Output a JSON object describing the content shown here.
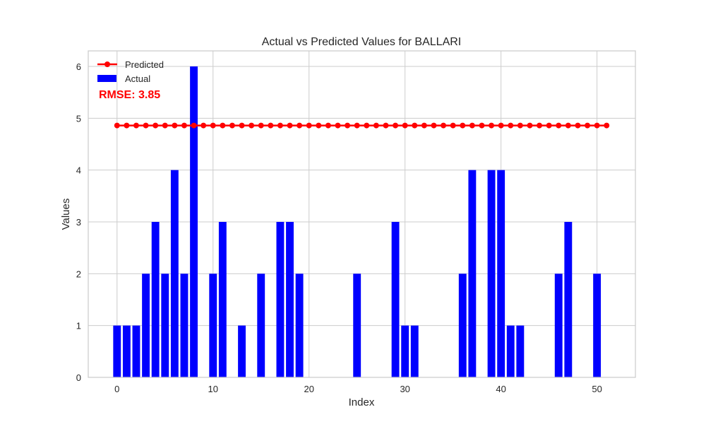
{
  "chart_data": {
    "type": "bar",
    "title": "Actual vs Predicted Values for BALLARI",
    "xlabel": "Index",
    "ylabel": "Values",
    "xlim": [
      -3,
      54
    ],
    "ylim": [
      0,
      6.3
    ],
    "xticks": [
      0,
      10,
      20,
      30,
      40,
      50
    ],
    "yticks": [
      0,
      1,
      2,
      3,
      4,
      5,
      6
    ],
    "grid": true,
    "legend_position": "top-left",
    "annotation": "RMSE: 3.85",
    "series": [
      {
        "name": "Actual",
        "kind": "bar",
        "color": "#0000ff",
        "x": [
          0,
          1,
          2,
          3,
          4,
          5,
          6,
          7,
          8,
          9,
          10,
          11,
          12,
          13,
          14,
          15,
          16,
          17,
          18,
          19,
          20,
          21,
          22,
          23,
          24,
          25,
          26,
          27,
          28,
          29,
          30,
          31,
          32,
          33,
          34,
          35,
          36,
          37,
          38,
          39,
          40,
          41,
          42,
          43,
          44,
          45,
          46,
          47,
          48,
          49,
          50
        ],
        "values": [
          1,
          1,
          1,
          2,
          3,
          2,
          4,
          2,
          6,
          0,
          2,
          3,
          0,
          1,
          0,
          2,
          0,
          3,
          3,
          2,
          0,
          0,
          0,
          0,
          0,
          2,
          0,
          0,
          0,
          3,
          1,
          1,
          0,
          0,
          0,
          0,
          2,
          4,
          0,
          4,
          4,
          1,
          1,
          0,
          0,
          0,
          2,
          3,
          0,
          0,
          2
        ]
      },
      {
        "name": "Predicted",
        "kind": "line",
        "color": "#ff0000",
        "x": [
          0,
          1,
          2,
          3,
          4,
          5,
          6,
          7,
          8,
          9,
          10,
          11,
          12,
          13,
          14,
          15,
          16,
          17,
          18,
          19,
          20,
          21,
          22,
          23,
          24,
          25,
          26,
          27,
          28,
          29,
          30,
          31,
          32,
          33,
          34,
          35,
          36,
          37,
          38,
          39,
          40,
          41,
          42,
          43,
          44,
          45,
          46,
          47,
          48,
          49,
          50,
          51
        ],
        "values": [
          4.86,
          4.86,
          4.86,
          4.86,
          4.86,
          4.86,
          4.86,
          4.86,
          4.86,
          4.86,
          4.86,
          4.86,
          4.86,
          4.86,
          4.86,
          4.86,
          4.86,
          4.86,
          4.86,
          4.86,
          4.86,
          4.86,
          4.86,
          4.86,
          4.86,
          4.86,
          4.86,
          4.86,
          4.86,
          4.86,
          4.86,
          4.86,
          4.86,
          4.86,
          4.86,
          4.86,
          4.86,
          4.86,
          4.86,
          4.86,
          4.86,
          4.86,
          4.86,
          4.86,
          4.86,
          4.86,
          4.86,
          4.86,
          4.86,
          4.86,
          4.86,
          4.86
        ]
      }
    ]
  }
}
